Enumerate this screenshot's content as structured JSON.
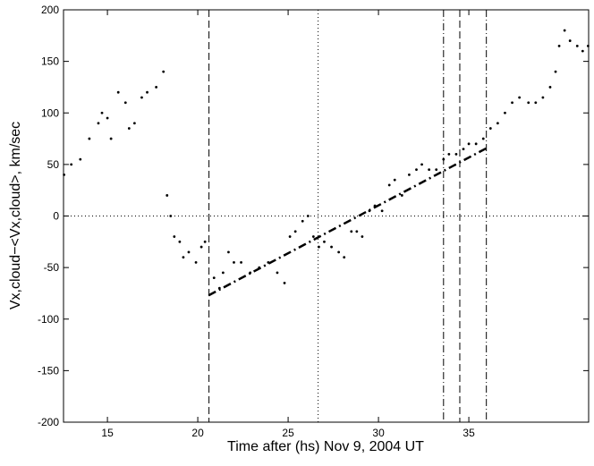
{
  "chart_data": {
    "type": "scatter",
    "xlabel": "Time after (hs) Nov 9, 2004 UT",
    "ylabel": "Vx,cloud−<Vx,cloud>, km/sec",
    "xlim": [
      12.57,
      41.63
    ],
    "ylim": [
      -200,
      200
    ],
    "xticks": [
      15,
      20,
      25,
      30,
      35
    ],
    "yticks": [
      -200,
      -150,
      -100,
      -50,
      0,
      50,
      100,
      150,
      200
    ],
    "color": "#000000",
    "series": [
      {
        "name": "Vx",
        "x": [
          12.6,
          13.0,
          13.5,
          14.0,
          14.5,
          14.7,
          15.0,
          15.2,
          15.6,
          16.0,
          16.2,
          16.5,
          16.9,
          17.2,
          17.7,
          18.1,
          18.3,
          18.5,
          18.7,
          19.0,
          19.2,
          19.5,
          19.9,
          20.2,
          20.4,
          20.9,
          21.2,
          21.4,
          21.7,
          22.0,
          22.4,
          22.9,
          23.4,
          23.9,
          24.4,
          24.8,
          25.1,
          25.4,
          25.8,
          26.1,
          26.4,
          26.7,
          27.0,
          27.4,
          27.8,
          28.1,
          28.5,
          28.8,
          29.1,
          29.5,
          29.8,
          30.2,
          30.6,
          30.9,
          31.3,
          31.7,
          32.1,
          32.4,
          32.8,
          33.2,
          33.6,
          33.9,
          34.3,
          34.7,
          35.0,
          35.4,
          35.8,
          36.2,
          36.6,
          37.0,
          37.4,
          37.8,
          38.3,
          38.7,
          39.1,
          39.5,
          39.8,
          40.0,
          40.3,
          40.6,
          41.0,
          41.3,
          41.6
        ],
        "values": [
          40,
          50,
          55,
          75,
          90,
          100,
          95,
          75,
          120,
          110,
          85,
          90,
          115,
          120,
          125,
          140,
          20,
          0,
          -20,
          -25,
          -40,
          -35,
          -45,
          -30,
          -25,
          -60,
          -70,
          -55,
          -35,
          -45,
          -45,
          -55,
          -50,
          -45,
          -55,
          -65,
          -20,
          -15,
          -5,
          0,
          -20,
          -30,
          -25,
          -30,
          -35,
          -40,
          -15,
          -15,
          -20,
          5,
          10,
          5,
          30,
          35,
          20,
          40,
          45,
          50,
          45,
          45,
          55,
          60,
          60,
          65,
          70,
          70,
          75,
          85,
          90,
          100,
          110,
          115,
          110,
          110,
          115,
          125,
          140,
          165,
          180,
          170,
          165,
          160,
          165
        ]
      }
    ],
    "fit": {
      "x": [
        20.6,
        36.0
      ],
      "values": [
        -77,
        66
      ]
    },
    "hlines": [
      0
    ],
    "vlines": [
      {
        "x": 20.62,
        "style": "dashed"
      },
      {
        "x": 26.66,
        "style": "dotted"
      },
      {
        "x": 33.6,
        "style": "dashdot"
      },
      {
        "x": 34.5,
        "style": "dashed"
      },
      {
        "x": 35.97,
        "style": "dashdot"
      }
    ]
  }
}
